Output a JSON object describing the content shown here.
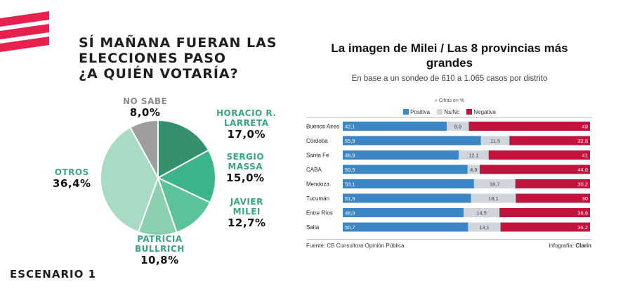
{
  "left": {
    "title_lines": [
      "SÍ MAÑANA FUERAN LAS",
      "ELECCIONES PASO",
      "¿A QUIÉN VOTARÍA?"
    ],
    "scenario_label": "ESCENARIO 1"
  },
  "right": {
    "title_lines": [
      "La imagen de Milei / Las 8 provincias más",
      "grandes"
    ],
    "subtitle": "En base a un sondeo de 610 a 1.065 casos por distrito",
    "note": "» Cifras en %",
    "source": "Fuente: CB Consultora Opinión Pública",
    "credit_prefix": "Infografía: ",
    "credit_brand": "Clarín"
  },
  "chart_data": [
    {
      "type": "pie",
      "slices": [
        {
          "name_lines": [
            "HORACIO R.",
            "LARRETA"
          ],
          "label": "17,0%",
          "value": 17.0,
          "color": "#35916b"
        },
        {
          "name_lines": [
            "SERGIO",
            "MASSA"
          ],
          "label": "15,0%",
          "value": 15.0,
          "color": "#3db58a"
        },
        {
          "name_lines": [
            "JAVIER",
            "MILEI"
          ],
          "label": "12,7%",
          "value": 12.7,
          "color": "#5cc29a"
        },
        {
          "name_lines": [
            "PATRICIA",
            "BULLRICH"
          ],
          "label": "10,8%",
          "value": 10.8,
          "color": "#8cd0b1"
        },
        {
          "name_lines": [
            "OTROS"
          ],
          "label": "36,4%",
          "value": 36.4,
          "color": "#a8dbc4"
        },
        {
          "name_lines": [
            "NO SABE"
          ],
          "label": "8,0%",
          "value": 8.0,
          "color": "#9e9e9e"
        }
      ],
      "label_color": "#3aa67d",
      "nosabe_color": "#8a8a8a"
    },
    {
      "type": "bar",
      "stacked": true,
      "categories": [
        "Buenos Aires",
        "Córdoba",
        "Santa Fe",
        "CABA",
        "Mendoza",
        "Tucumán",
        "Entre Ríos",
        "Salta"
      ],
      "series": [
        {
          "name": "Positiva",
          "color": "#3b86c4",
          "values": [
            42.1,
            55.9,
            46.9,
            50.5,
            53.1,
            51.9,
            48.9,
            50.7
          ],
          "labels": [
            "42,1",
            "55,9",
            "46,9",
            "50,5",
            "53,1",
            "51,9",
            "48,9",
            "50,7"
          ]
        },
        {
          "name": "Ns/Nc",
          "color": "#cfd5da",
          "values": [
            8.9,
            11.5,
            12.1,
            4.9,
            16.7,
            18.1,
            14.5,
            13.1
          ],
          "labels": [
            "8,9",
            "11,5",
            "12,1",
            "4,9",
            "16,7",
            "18,1",
            "14,5",
            "13,1"
          ]
        },
        {
          "name": "Negativa",
          "color": "#c0143c",
          "values": [
            49,
            32.6,
            41,
            44.6,
            30.2,
            30,
            36.6,
            36.2
          ],
          "labels": [
            "49",
            "32,6",
            "41",
            "44,6",
            "30,2",
            "30",
            "36,6",
            "36,2"
          ]
        }
      ],
      "xlim": [
        0,
        100
      ]
    }
  ]
}
